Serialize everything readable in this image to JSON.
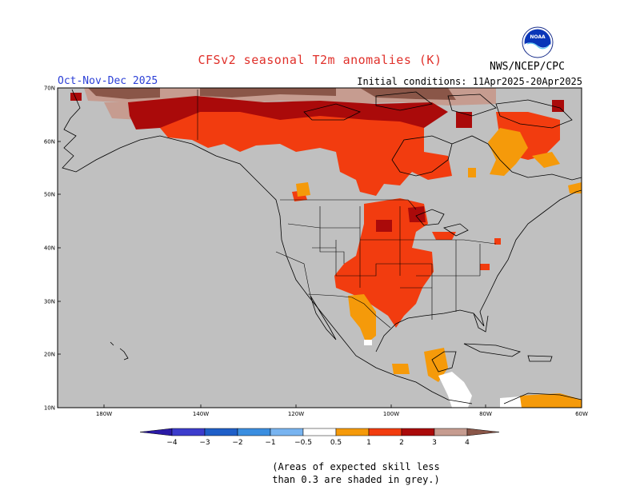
{
  "map": {
    "title": "CFSv2 seasonal T2m anomalies (K)",
    "period": "Oct-Nov-Dec 2025",
    "initial_conditions": "Initial conditions: 11Apr2025-20Apr2025",
    "agency": "NWS/NCEP/CPC",
    "logo_text": "NOAA",
    "lat_labels": [
      "70N",
      "60N",
      "50N",
      "40N",
      "30N",
      "20N",
      "10N"
    ],
    "lon_labels": [
      "180W",
      "140W",
      "120W",
      "100W",
      "80W",
      "60W"
    ],
    "legend": {
      "ticks": [
        "−4",
        "−3",
        "−2",
        "−1",
        "−0.5",
        "0.5",
        "1",
        "2",
        "3",
        "4"
      ],
      "colors": [
        "#2a1aa6",
        "#3c3ccc",
        "#1f5fc8",
        "#3a8ee0",
        "#78b4f0",
        "#ffffff",
        "#f59a0a",
        "#f23c0f",
        "#aa0a0a",
        "#c69c90",
        "#8a5648"
      ]
    },
    "note": "(Areas of expected skill less\nthan 0.3 are shaded in grey.)",
    "colors": {
      "grey": "#c0c0c0",
      "orange": "#f59a0a",
      "red": "#f23c0f",
      "dark_red": "#aa0a0a",
      "pink_brown": "#c69c90",
      "brown": "#8a5648"
    }
  }
}
